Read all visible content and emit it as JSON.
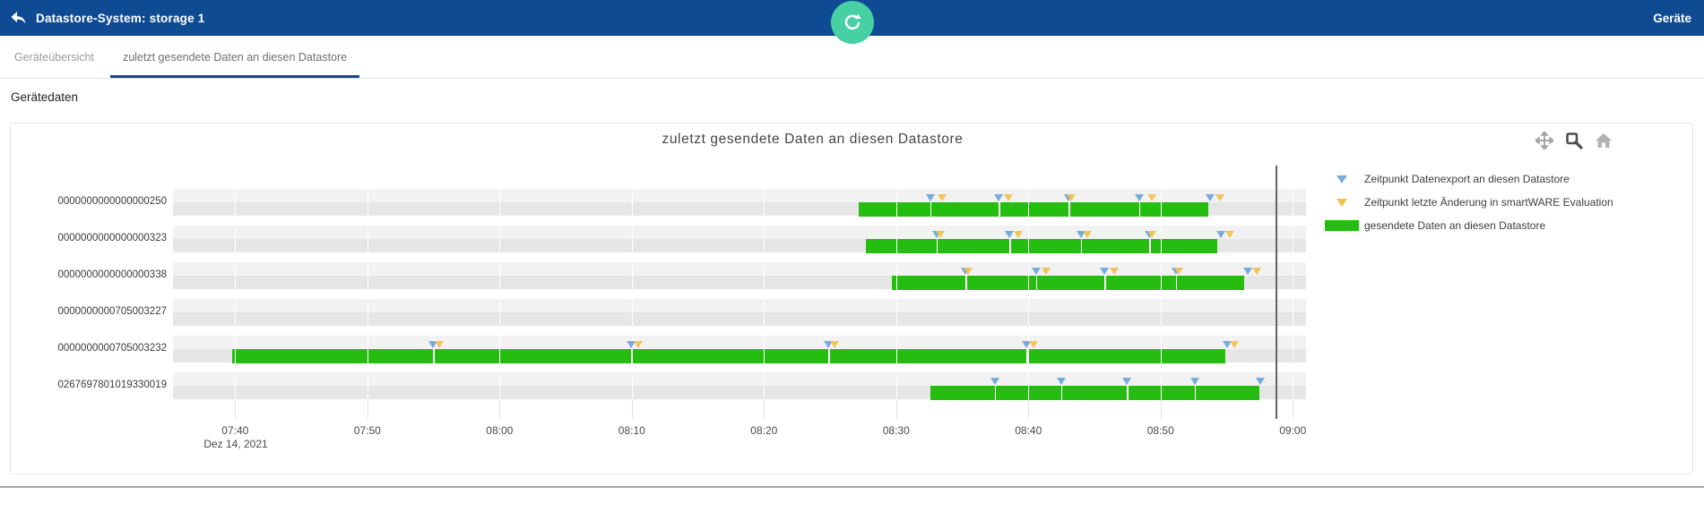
{
  "appbar": {
    "title": "Datastore-System: storage 1",
    "right_link": "Geräte",
    "bar_color": "#0e4b93",
    "fab_color": "#47d0a3"
  },
  "tabs": {
    "inactive_tab": "Geräteübersicht",
    "active_tab": "zuletzt gesendete Daten an diesen Datastore"
  },
  "section_label": "Gerätedaten",
  "modebar_icons": [
    "pan-icon",
    "zoom-icon",
    "home-icon"
  ],
  "chart_data": {
    "type": "bar",
    "subtype": "horizontal-timeline-gantt",
    "title": "zuletzt gesendete Daten an diesen Datastore",
    "time_unit": "minutes since 07:40 on Dez 14, 2021",
    "x_axis": {
      "date_label": "Dez 14, 2021",
      "tick_minutes": [
        0,
        10,
        20,
        30,
        40,
        50,
        60,
        70,
        80
      ],
      "tick_labels": [
        "07:40",
        "07:50",
        "08:00",
        "08:10",
        "08:20",
        "08:30",
        "08:40",
        "08:50",
        "09:00"
      ],
      "range_minutes": [
        -4.7,
        81.0
      ],
      "grid": true
    },
    "now_line_minute": 78.7,
    "colors": {
      "sent_data_bar": "#25bd0f",
      "export_marker": "#76acdb",
      "change_marker": "#f2c14e",
      "track_top": "#f2f2f2",
      "track_bottom": "#e6e6e6",
      "gridline_over_track": "#ffffff",
      "gridline_stub": "#e2e2e2",
      "now_line": "#636363"
    },
    "rows": [
      {
        "device": "0000000000000000250",
        "bars": [
          [
            47.2,
            73.6
          ]
        ],
        "exports": [
          52.6,
          57.8,
          63.1,
          68.4,
          73.8
        ],
        "changes": [
          53.5,
          58.5,
          63.3,
          69.4,
          74.5
        ]
      },
      {
        "device": "0000000000000000323",
        "bars": [
          [
            47.7,
            74.3
          ]
        ],
        "exports": [
          53.1,
          58.6,
          64.0,
          69.2,
          74.6
        ],
        "changes": [
          53.4,
          59.3,
          64.5,
          69.4,
          75.3
        ]
      },
      {
        "device": "0000000000000000338",
        "bars": [
          [
            49.7,
            76.3
          ]
        ],
        "exports": [
          55.3,
          60.6,
          65.8,
          71.2,
          76.6
        ],
        "changes": [
          55.5,
          61.4,
          66.5,
          71.4,
          77.3
        ]
      },
      {
        "device": "0000000000705003227",
        "bars": [],
        "exports": [],
        "changes": []
      },
      {
        "device": "0000000000705003232",
        "bars": [
          [
            -0.2,
            74.9
          ]
        ],
        "exports": [
          15.0,
          30.0,
          44.9,
          59.9,
          75.1
        ],
        "changes": [
          15.5,
          30.5,
          45.4,
          60.4,
          75.6
        ]
      },
      {
        "device": "0267697801019330019",
        "bars": [
          [
            52.6,
            77.5
          ]
        ],
        "exports": [
          57.5,
          62.5,
          67.5,
          72.6,
          77.6
        ],
        "changes": []
      }
    ],
    "legend": [
      {
        "marker": "triangle",
        "color": "#76acdb",
        "label": "Zeitpunkt Datenexport an diesen Datastore"
      },
      {
        "marker": "triangle",
        "color": "#f2c14e",
        "label": "Zeitpunkt letzte Änderung in smartWARE Evaluation"
      },
      {
        "marker": "bar",
        "color": "#25bd0f",
        "label": "gesendete Daten an diesen Datastore"
      }
    ],
    "legend_position": "right"
  }
}
